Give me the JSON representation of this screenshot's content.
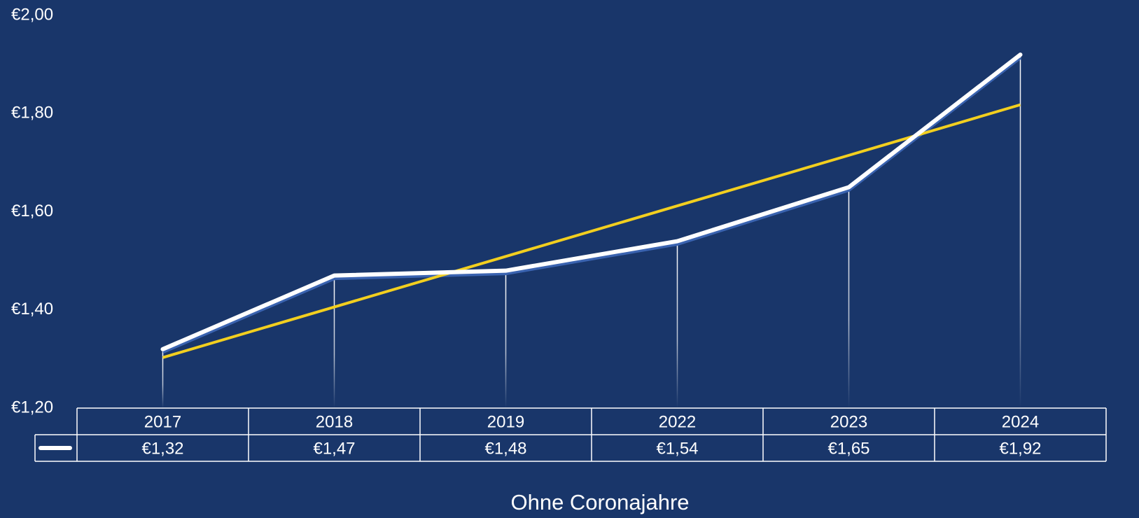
{
  "chart_data": {
    "type": "line",
    "title": "Ohne Coronajahre",
    "categories": [
      "2017",
      "2018",
      "2019",
      "2022",
      "2023",
      "2024"
    ],
    "values": [
      1.32,
      1.47,
      1.48,
      1.54,
      1.65,
      1.92
    ],
    "value_labels": [
      "€1,32",
      "€1,47",
      "€1,48",
      "€1,54",
      "€1,65",
      "€1,92"
    ],
    "color": "#ffffff",
    "trend": {
      "color": "#f2cf1f",
      "values": [
        1.303,
        1.406,
        1.509,
        1.612,
        1.715,
        1.818
      ]
    },
    "ylim": [
      1.2,
      2.0
    ],
    "yticks": [
      {
        "value": 1.2,
        "label": "€1,20"
      },
      {
        "value": 1.4,
        "label": "€1,40"
      },
      {
        "value": 1.6,
        "label": "€1,60"
      },
      {
        "value": 1.8,
        "label": "€1,80"
      },
      {
        "value": 2.0,
        "label": "€2,00"
      }
    ]
  }
}
